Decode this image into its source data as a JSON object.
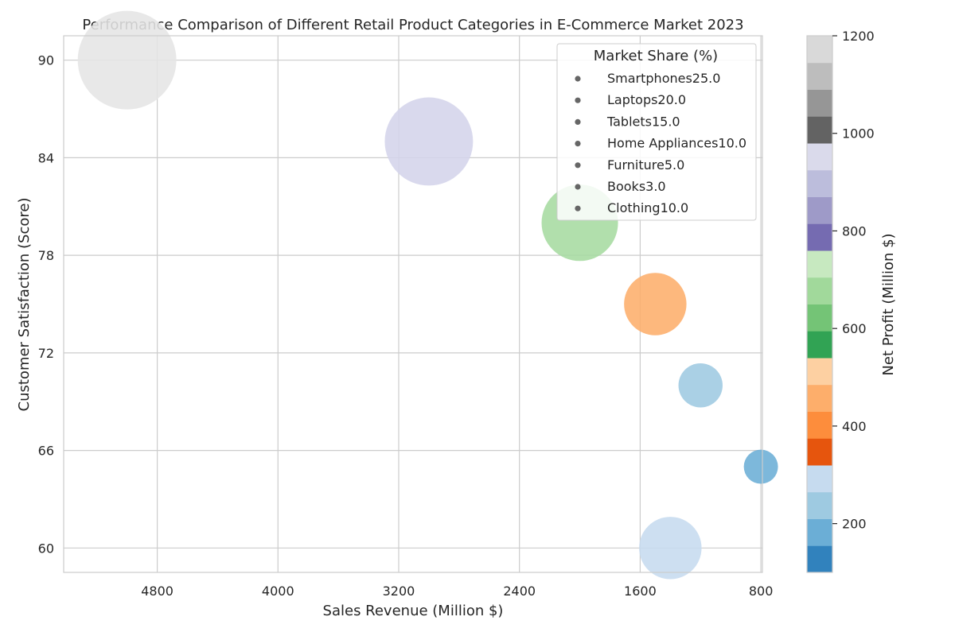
{
  "chart_data": {
    "type": "scatter",
    "title": "Performance Comparison of Different Retail Product Categories in E-Commerce Market 2023",
    "xlabel": "Sales Revenue (Million $)",
    "ylabel": "Customer Satisfaction (Score)",
    "x_axis_inverted": true,
    "xlim": [
      5420,
      790
    ],
    "ylim": [
      58.5,
      91.5
    ],
    "x_ticks": [
      4800,
      4000,
      3200,
      2400,
      1600,
      800
    ],
    "y_ticks": [
      60,
      66,
      72,
      78,
      84,
      90
    ],
    "grid": true,
    "legend": {
      "title": "Market Share (%)",
      "placement": "top-right",
      "entries": [
        "Smartphones25.0",
        "Laptops20.0",
        "Tablets15.0",
        "Home Appliances10.0",
        "Furniture5.0",
        "Books3.0",
        "Clothing10.0"
      ],
      "marker_color": "#666666"
    },
    "size_encodes": "market_share",
    "color_encodes": "net_profit",
    "points": [
      {
        "category": "Smartphones",
        "sales_revenue": 5000,
        "satisfaction": 90,
        "market_share": 25,
        "net_profit": 1200,
        "color": "#e5e5e5"
      },
      {
        "category": "Laptops",
        "sales_revenue": 3000,
        "satisfaction": 85,
        "market_share": 20,
        "net_profit": 950,
        "color": "#d4d4ea"
      },
      {
        "category": "Tablets",
        "sales_revenue": 2000,
        "satisfaction": 80,
        "market_share": 15,
        "net_profit": 650,
        "color": "#a6dba0"
      },
      {
        "category": "Home Appliances",
        "sales_revenue": 1500,
        "satisfaction": 75,
        "market_share": 10,
        "net_profit": 450,
        "color": "#fdae6b"
      },
      {
        "category": "Furniture",
        "sales_revenue": 1200,
        "satisfaction": 70,
        "market_share": 5,
        "net_profit": 250,
        "color": "#9ecae1"
      },
      {
        "category": "Books",
        "sales_revenue": 800,
        "satisfaction": 65,
        "market_share": 3,
        "net_profit": 150,
        "color": "#6baed6"
      },
      {
        "category": "Clothing",
        "sales_revenue": 1400,
        "satisfaction": 60,
        "market_share": 10,
        "net_profit": 300,
        "color": "#c6dbef"
      }
    ],
    "colorbar": {
      "label": "Net Profit (Million $)",
      "range": [
        100,
        1200
      ],
      "ticks": [
        200,
        400,
        600,
        800,
        1000,
        1200
      ],
      "colors": [
        "#3182bd",
        "#6baed6",
        "#9ecae1",
        "#c6dbef",
        "#e6550d",
        "#fd8d3c",
        "#fdae6b",
        "#fdd0a2",
        "#31a354",
        "#74c476",
        "#a1d99b",
        "#c7e9c0",
        "#756bb1",
        "#9e9ac8",
        "#bcbddc",
        "#dadaeb",
        "#636363",
        "#969696",
        "#bdbdbd",
        "#d9d9d9"
      ]
    }
  }
}
